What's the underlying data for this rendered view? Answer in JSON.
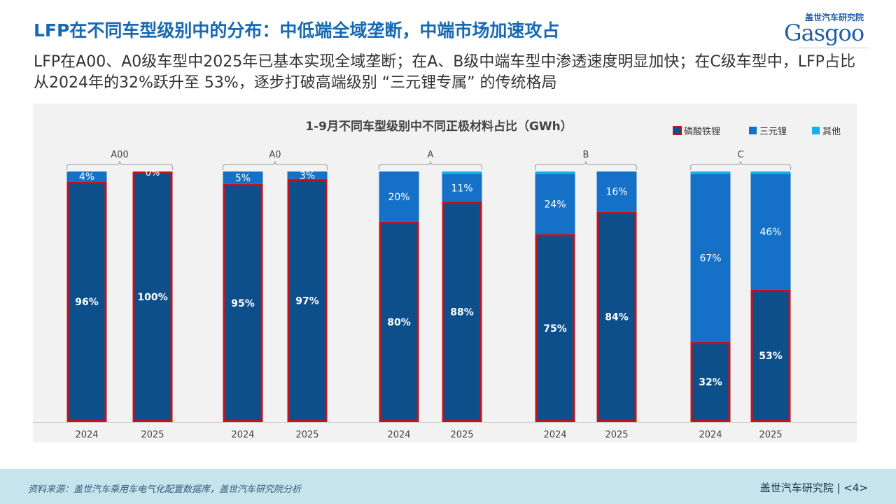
{
  "header": {
    "title": "LFP在不同车型级别中的分布：中低端全域垄断，中端市场加速攻占",
    "subtitle": "LFP在A00、A0级车型中2025年已基本实现全域垄断；在A、B级中端车型中渗透速度明显加快；在C级车型中，LFP占比从2024年的32%跃升至 53%，逐步打破高端级别 “三元锂专属” 的传统格局",
    "logo_cn": "盖世汽车研究院",
    "logo_en": "Gasgoo"
  },
  "chart_data": {
    "type": "bar",
    "stacked": true,
    "percent": true,
    "title": "1-9月不同车型级别中不同正极材料占比（GWh）",
    "legend_position": "top-right",
    "groups": [
      "A00",
      "A0",
      "A",
      "B",
      "C"
    ],
    "categories": [
      "2024",
      "2025",
      "2024",
      "2025",
      "2024",
      "2025",
      "2024",
      "2025",
      "2024",
      "2025"
    ],
    "series": [
      {
        "name": "磷酸铁锂",
        "color": "#0d4f8b",
        "border": "#c0141c",
        "values": [
          96,
          100,
          95,
          97,
          80,
          88,
          75,
          84,
          32,
          53
        ],
        "labels": [
          "96%",
          "100%",
          "95%",
          "97%",
          "80%",
          "88%",
          "75%",
          "84%",
          "32%",
          "53%"
        ]
      },
      {
        "name": "三元锂",
        "color": "#1571c7",
        "values": [
          4,
          0,
          5,
          3,
          20,
          11,
          24,
          16,
          67,
          46
        ],
        "labels": [
          "4%",
          "0%",
          "5%",
          "3%",
          "20%",
          "11%",
          "24%",
          "16%",
          "67%",
          "46%"
        ]
      },
      {
        "name": "其他",
        "color": "#11b0ec",
        "values": [
          0,
          0,
          0,
          0,
          0,
          1,
          1,
          0,
          1,
          1
        ]
      }
    ],
    "ylim": [
      0,
      100
    ],
    "grid": false
  },
  "footer": {
    "source": "资料来源：盖世汽车乘用车电气化配置数据库，盖世汽车研究院分析",
    "brand": "盖世汽车研究院 | <4>"
  }
}
